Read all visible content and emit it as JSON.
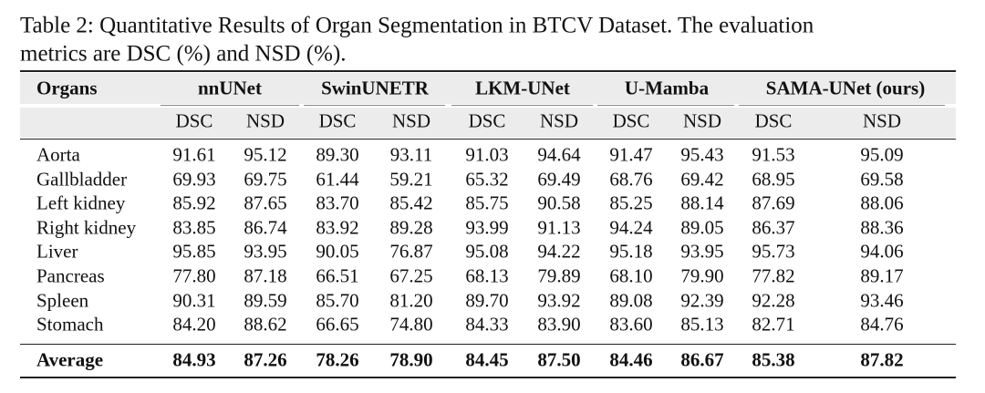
{
  "caption": [
    "Table 2: Quantitative Results of Organ Segmentation in BTCV Dataset. The evaluation",
    "metrics are DSC (%) and NSD (%)."
  ],
  "table": {
    "corner": "Organs",
    "groups": [
      "nnUNet",
      "SwinUNETR",
      "LKM-UNet",
      "U-Mamba",
      "SAMA-UNet (ours)"
    ],
    "subheaders": [
      "DSC",
      "NSD",
      "DSC",
      "NSD",
      "DSC",
      "NSD",
      "DSC",
      "NSD",
      "DSC",
      "NSD"
    ],
    "rows": [
      [
        "Aorta",
        "91.61",
        "95.12",
        "89.30",
        "93.11",
        "91.03",
        "94.64",
        "91.47",
        "95.43",
        "91.53",
        "95.09"
      ],
      [
        "Gallbladder",
        "69.93",
        "69.75",
        "61.44",
        "59.21",
        "65.32",
        "69.49",
        "68.76",
        "69.42",
        "68.95",
        "69.58"
      ],
      [
        "Left kidney",
        "85.92",
        "87.65",
        "83.70",
        "85.42",
        "85.75",
        "90.58",
        "85.25",
        "88.14",
        "87.69",
        "88.06"
      ],
      [
        "Right kidney",
        "83.85",
        "86.74",
        "83.92",
        "89.28",
        "93.99",
        "91.13",
        "94.24",
        "89.05",
        "86.37",
        "88.36"
      ],
      [
        "Liver",
        "95.85",
        "93.95",
        "90.05",
        "76.87",
        "95.08",
        "94.22",
        "95.18",
        "93.95",
        "95.73",
        "94.06"
      ],
      [
        "Pancreas",
        "77.80",
        "87.18",
        "66.51",
        "67.25",
        "68.13",
        "79.89",
        "68.10",
        "79.90",
        "77.82",
        "89.17"
      ],
      [
        "Spleen",
        "90.31",
        "89.59",
        "85.70",
        "81.20",
        "89.70",
        "93.92",
        "89.08",
        "92.39",
        "92.28",
        "93.46"
      ],
      [
        "Stomach",
        "84.20",
        "88.62",
        "66.65",
        "74.80",
        "84.33",
        "83.90",
        "83.60",
        "85.13",
        "82.71",
        "84.76"
      ]
    ],
    "average": [
      "Average",
      "84.93",
      "87.26",
      "78.26",
      "78.90",
      "84.45",
      "87.50",
      "84.46",
      "86.67",
      "85.38",
      "87.82"
    ]
  }
}
